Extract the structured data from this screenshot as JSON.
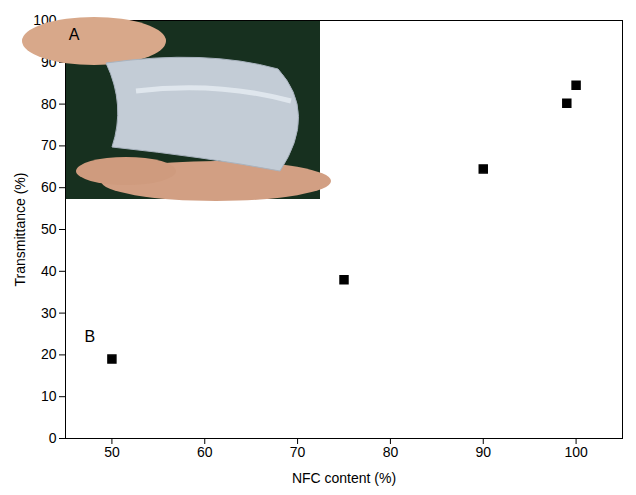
{
  "chart_data": {
    "type": "scatter",
    "x": [
      50,
      75,
      90,
      99,
      100
    ],
    "values": [
      19,
      38,
      64.5,
      80.2,
      84.5
    ],
    "x_label": "NFC content (%)",
    "y_label": "Transmittance (%)",
    "xlim": [
      45,
      105
    ],
    "ylim": [
      0,
      100
    ],
    "xticks": [
      50,
      60,
      70,
      80,
      90,
      100
    ],
    "yticks": [
      0,
      10,
      20,
      30,
      40,
      50,
      60,
      70,
      80,
      90,
      100
    ],
    "color": "#000000",
    "marker": "square",
    "grid": false,
    "annotations": [
      "A",
      "B"
    ]
  }
}
